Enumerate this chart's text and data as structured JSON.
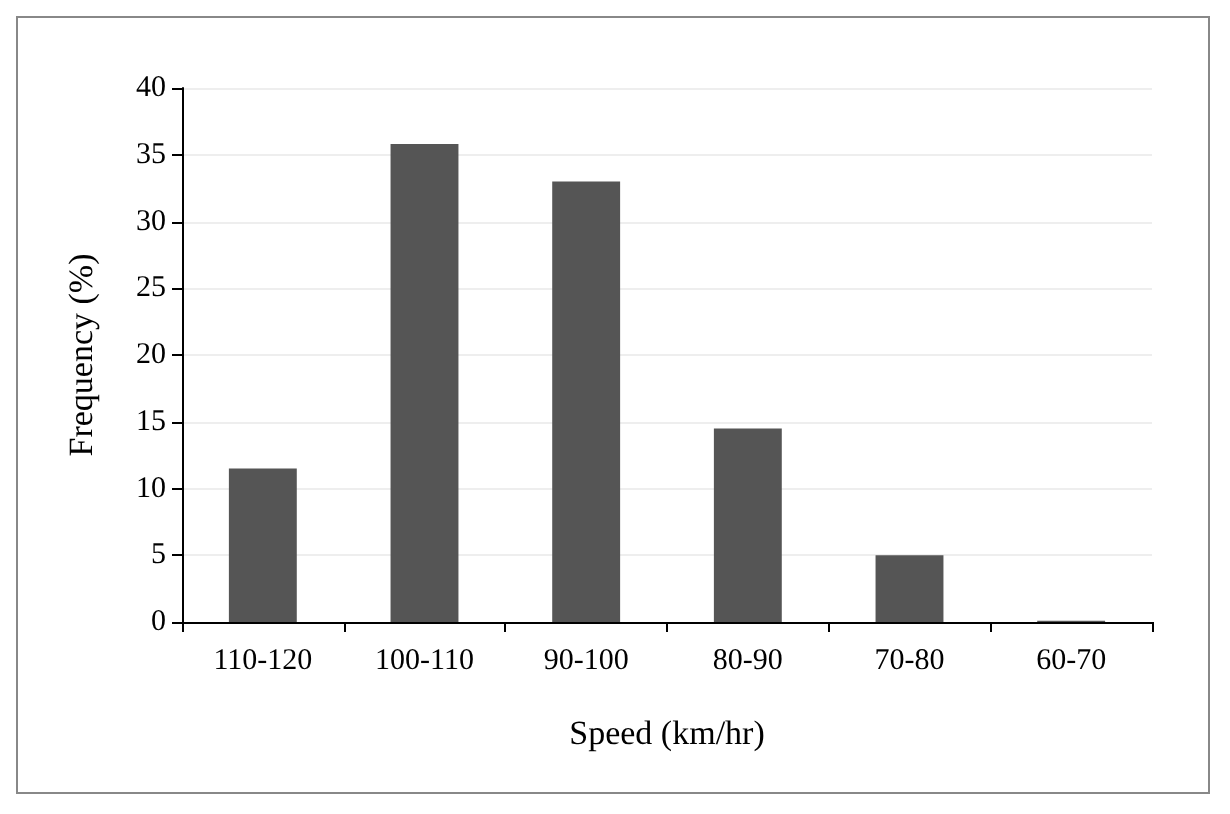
{
  "chart_data": {
    "type": "bar",
    "xlabel": "Speed (km/hr)",
    "ylabel": "Frequency (%)",
    "categories": [
      "110-120",
      "100-110",
      "90-100",
      "80-90",
      "70-80",
      "60-70"
    ],
    "values": [
      11.5,
      35.8,
      33.0,
      14.5,
      5.0,
      0.1
    ],
    "color": "#555555",
    "ylim": [
      0,
      40
    ],
    "yticks": [
      0,
      5,
      10,
      15,
      20,
      25,
      30,
      35,
      40
    ],
    "grid": "y"
  }
}
